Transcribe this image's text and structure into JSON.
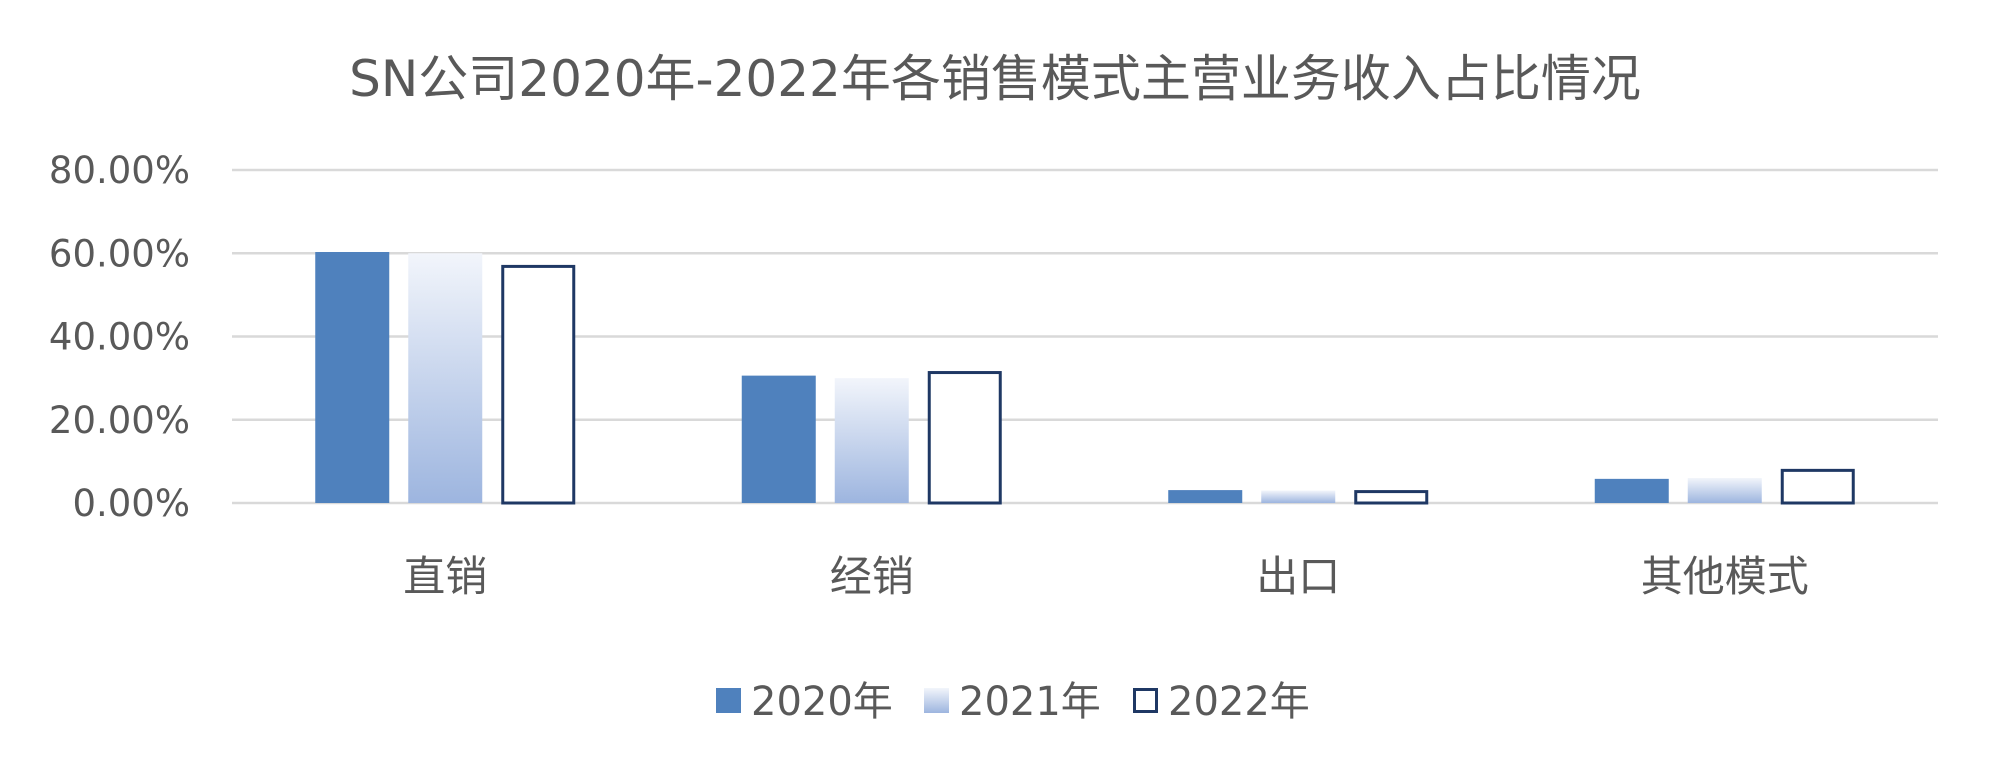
{
  "chart_data": {
    "type": "bar",
    "title": "SN公司2020年-2022年各销售模式主营业务收入占比情况",
    "categories": [
      "直销",
      "经销",
      "出口",
      "其他模式"
    ],
    "series": [
      {
        "name": "2020年",
        "values": [
          60.3,
          30.6,
          3.1,
          5.8
        ],
        "style": "solid",
        "color": "#4F81BD"
      },
      {
        "name": "2021年",
        "values": [
          60.0,
          30.0,
          3.0,
          6.0
        ],
        "style": "gradient",
        "color": "#A9BFE3"
      },
      {
        "name": "2022年",
        "values": [
          57.2,
          31.7,
          3.1,
          8.2
        ],
        "style": "outline",
        "color": "#1F3864"
      }
    ],
    "ylim": [
      0,
      80
    ],
    "yticks": [
      "0.00%",
      "20.00%",
      "40.00%",
      "60.00%",
      "80.00%"
    ],
    "grid": true,
    "legend_position": "bottom",
    "xlabel": "",
    "ylabel": ""
  }
}
